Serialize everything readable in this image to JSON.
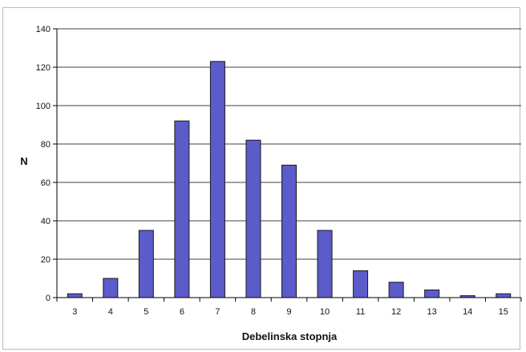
{
  "chart_data": {
    "type": "bar",
    "title": "",
    "xlabel": "Debelinska stopnja",
    "ylabel": "N",
    "categories": [
      "3",
      "4",
      "5",
      "6",
      "7",
      "8",
      "9",
      "10",
      "11",
      "12",
      "13",
      "14",
      "15"
    ],
    "values": [
      2,
      10,
      35,
      92,
      123,
      82,
      69,
      35,
      14,
      8,
      4,
      1,
      2
    ],
    "ylim": [
      0,
      140
    ],
    "yticks": [
      "0",
      "20",
      "40",
      "60",
      "80",
      "100",
      "120",
      "140"
    ],
    "grid": true,
    "legend": "none",
    "colors": {
      "bar": "#5b5bc9",
      "bar_edge": "#1a1a1a",
      "grid": "#000000"
    }
  }
}
